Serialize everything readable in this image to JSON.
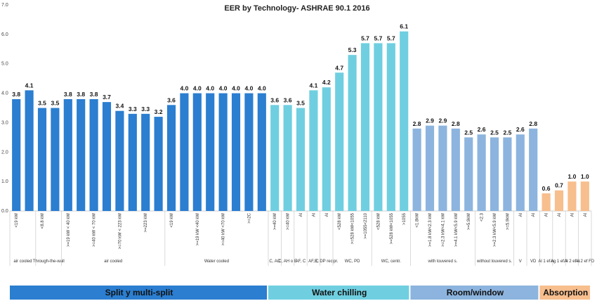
{
  "chart_data": {
    "type": "bar",
    "title": "EER by Technology- ASHRAE 90.1 2016",
    "ylim": [
      0,
      7
    ],
    "yticks": [
      "0.0",
      "1.0",
      "2.0",
      "3.0",
      "4.0",
      "5.0",
      "6.0",
      "7.0"
    ],
    "grid": false,
    "categories": [
      "<19 kW",
      "",
      "<8.8 kW",
      "",
      ">=19 kW < 40 kW",
      "",
      ">=40 kW < 70 kW",
      "",
      ">=70 kW < 223 kW",
      "",
      ">=223 kW",
      "",
      "<19 kW",
      "",
      ">=19 kW <40 kW",
      "",
      ">=40 kW <70 kW",
      "",
      ">=2C",
      "",
      ">=40 kW",
      ">=40 kW",
      "Al",
      "Al",
      "Al",
      "<528 kW",
      ">=528 kW<1055",
      ">=1055<2110",
      "<528 kW",
      ">=528 kW<1055",
      ">1055",
      "<1.8kW",
      ">=1.8 kW<2.3 kW",
      ">=2.3 kW<4.1 kW",
      ">=4.1 kW<5.9 kW",
      ">=5.9kW",
      "<2.3",
      ">=2.3 kW<5.9 kW",
      ">=5.9kW",
      "Al",
      "Al",
      "Al",
      "Al",
      "Al",
      "Al"
    ],
    "values": [
      3.8,
      4.1,
      3.5,
      3.5,
      3.8,
      3.8,
      3.8,
      3.7,
      3.4,
      3.3,
      3.3,
      3.2,
      3.6,
      4.0,
      4.0,
      4.0,
      4.0,
      4.0,
      4.0,
      4.0,
      3.6,
      3.6,
      3.5,
      4.1,
      4.2,
      4.7,
      5.3,
      5.7,
      5.7,
      5.7,
      6.1,
      2.8,
      2.9,
      2.9,
      2.8,
      2.5,
      2.6,
      2.5,
      2.5,
      2.6,
      2.8,
      0.6,
      0.7,
      1.0,
      1.0
    ],
    "label_shown": [
      true,
      true,
      true,
      true,
      true,
      true,
      true,
      true,
      true,
      true,
      true,
      true,
      true,
      true,
      true,
      true,
      true,
      true,
      true,
      true,
      true,
      true,
      true,
      true,
      true,
      true,
      true,
      true,
      true,
      true,
      true,
      true,
      true,
      true,
      true,
      true,
      true,
      true,
      true,
      true,
      true,
      true,
      true,
      true,
      true
    ],
    "subgroups": [
      {
        "label": "air cooled",
        "start": 0,
        "end": 1
      },
      {
        "label": "Through-the-wall",
        "start": 2,
        "end": 3
      },
      {
        "label": "air cooled",
        "start": 4,
        "end": 11
      },
      {
        "label": "Water cooled",
        "start": 12,
        "end": 19
      },
      {
        "label": "C, AC",
        "start": 20,
        "end": 20
      },
      {
        "label": "C, AH o E",
        "start": 21,
        "end": 21
      },
      {
        "label": "AF, C",
        "start": 22,
        "end": 22
      },
      {
        "label": "AF, C",
        "start": 23,
        "end": 23
      },
      {
        "label": "E, DP recipr.",
        "start": 24,
        "end": 24
      },
      {
        "label": "WC, PD",
        "start": 25,
        "end": 27
      },
      {
        "label": "WC, centr.",
        "start": 28,
        "end": 30
      },
      {
        "label": "with louvered s.",
        "start": 31,
        "end": 35
      },
      {
        "label": "without louvered s.",
        "start": 36,
        "end": 38
      },
      {
        "label": "V",
        "start": 39,
        "end": 39
      },
      {
        "label": "VD",
        "start": 40,
        "end": 40
      },
      {
        "label": "Al 1 ef A",
        "start": 41,
        "end": 41
      },
      {
        "label": "Ag 1 ef A",
        "start": 42,
        "end": 42
      },
      {
        "label": "Al 2 ef A",
        "start": 43,
        "end": 43
      },
      {
        "label": "Al 2 ef FD",
        "start": 44,
        "end": 44
      }
    ],
    "groups": [
      {
        "label": "Split y multi-split",
        "color": "#2B7ED0",
        "start": 0,
        "end": 19
      },
      {
        "label": "Water chilling",
        "color": "#6FCFE0",
        "start": 20,
        "end": 30
      },
      {
        "label": "Room/window",
        "color": "#8CB4DE",
        "start": 31,
        "end": 40
      },
      {
        "label": "Absorption",
        "color": "#F7BE8E",
        "start": 41,
        "end": 44
      }
    ]
  }
}
